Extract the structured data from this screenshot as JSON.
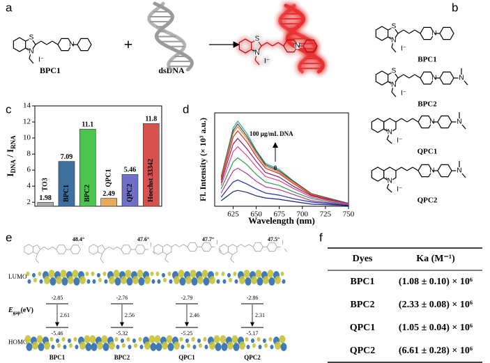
{
  "panel_labels": {
    "a": "a",
    "b": "b",
    "c": "c",
    "d": "d",
    "e": "e",
    "f": "f"
  },
  "atoms": {
    "S": "S",
    "N": "N",
    "plus": "+",
    "iodide": "I⁻"
  },
  "scheme": {
    "dye": "BPC1",
    "plus": "+",
    "dna": "dsDNA"
  },
  "structures": [
    "BPC1",
    "BPC2",
    "QPC1",
    "QPC2"
  ],
  "chart_data": [
    {
      "type": "bar",
      "ylabel": {
        "main": "I",
        "sub1": "DNA",
        "sep": " / I",
        "sub2": "RNA"
      },
      "categories": [
        "TO3",
        "BPC1",
        "BPC2",
        "QPC1",
        "QPC2",
        "Hoechst 33342"
      ],
      "values": [
        1.98,
        7.09,
        11.1,
        2.49,
        5.46,
        11.8
      ],
      "colors": [
        "#a9a9a9",
        "#3f6f9f",
        "#4cc34c",
        "#e8a95c",
        "#6d6fc9",
        "#d9514f"
      ],
      "ylim": [
        1.5,
        14
      ],
      "yticks": [
        2,
        4,
        6,
        8,
        10,
        12,
        14
      ]
    },
    {
      "type": "line",
      "xlabel": "Wavelength (nm)",
      "ylabel": "Fl. Intensity (× 10³ a.u.)",
      "annotation_high": "100 μg/mL DNA",
      "annotation_low": "0",
      "x": [
        612,
        620,
        625,
        630,
        640,
        650,
        660,
        675,
        690,
        710,
        750
      ],
      "series": [
        {
          "color": "#2a9d9d",
          "values": [
            4.3,
            8.6,
            11.3,
            12.3,
            10.5,
            8.1,
            6.2,
            5.3,
            3.7,
            1.8,
            0.4
          ]
        },
        {
          "color": "#444444",
          "values": [
            4.2,
            8.3,
            10.9,
            11.9,
            10.1,
            7.9,
            6.0,
            5.1,
            3.6,
            1.8,
            0.4
          ]
        },
        {
          "color": "#e07b2a",
          "values": [
            4.0,
            8.1,
            10.6,
            11.5,
            9.8,
            7.6,
            5.8,
            4.9,
            3.5,
            1.7,
            0.3
          ]
        },
        {
          "color": "#d62828",
          "values": [
            3.8,
            7.6,
            10.0,
            10.9,
            9.3,
            7.2,
            5.5,
            4.7,
            3.3,
            1.6,
            0.3
          ]
        },
        {
          "color": "#8b1a6b",
          "values": [
            3.4,
            6.9,
            9.0,
            9.8,
            8.3,
            6.5,
            4.9,
            4.2,
            2.9,
            1.5,
            0.3
          ]
        },
        {
          "color": "#e0409a",
          "values": [
            3.0,
            6.0,
            7.9,
            8.6,
            7.3,
            5.7,
            4.3,
            3.7,
            2.6,
            1.3,
            0.3
          ]
        },
        {
          "color": "#2e9e4a",
          "values": [
            2.5,
            4.9,
            6.4,
            7.0,
            6.0,
            4.6,
            3.5,
            3.0,
            2.1,
            1.1,
            0.2
          ]
        },
        {
          "color": "#b03a8a",
          "values": [
            1.9,
            3.9,
            5.1,
            5.5,
            4.7,
            3.6,
            2.8,
            2.4,
            1.7,
            0.8,
            0.2
          ]
        },
        {
          "color": "#2030b0",
          "values": [
            1.3,
            2.7,
            3.5,
            3.8,
            3.2,
            2.5,
            1.9,
            1.6,
            1.1,
            0.6,
            0.1
          ]
        },
        {
          "color": "#1a237e",
          "values": [
            0.8,
            1.6,
            2.1,
            2.3,
            2.0,
            1.5,
            1.2,
            1.0,
            0.7,
            0.3,
            0.1
          ]
        }
      ],
      "xlim": [
        605,
        750
      ],
      "xticks": [
        625,
        650,
        675,
        700,
        725,
        750
      ],
      "ylim": [
        0,
        13.5
      ]
    }
  ],
  "orbitals": {
    "row_labels": {
      "lumo": "LUMO",
      "homo": "HOMO"
    },
    "egap": {
      "E": "E",
      "sub": "gap",
      "unit": "(eV)"
    },
    "dyes": [
      {
        "name": "BPC1",
        "angle": "48.4°",
        "lumo": -2.85,
        "gap": 2.61,
        "homo": -5.46
      },
      {
        "name": "BPC2",
        "angle": "47.6°",
        "lumo": -2.76,
        "gap": 2.56,
        "homo": -5.32
      },
      {
        "name": "QPC1",
        "angle": "47.7°",
        "lumo": -2.79,
        "gap": 2.46,
        "homo": -5.25
      },
      {
        "name": "QPC2",
        "angle": "47.5°",
        "lumo": -2.86,
        "gap": 2.31,
        "homo": -5.17
      }
    ]
  },
  "table": {
    "header": [
      "Dyes",
      "Ka (M⁻¹)"
    ],
    "rows": [
      [
        "BPC1",
        "(1.08 ± 0.10) × 10⁶"
      ],
      [
        "BPC2",
        "(2.33 ± 0.08) × 10⁶"
      ],
      [
        "QPC1",
        "(1.05 ± 0.04) × 10⁶"
      ],
      [
        "QPC2",
        "(6.61 ± 0.28) × 10⁶"
      ]
    ]
  }
}
